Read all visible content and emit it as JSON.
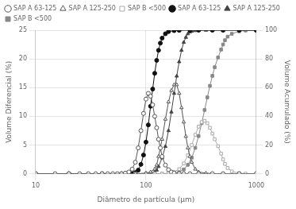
{
  "chart_data": {
    "type": "line",
    "xlabel": "Diâmetro de partícula (μm)",
    "ylabel": "Volume Diferencial (%)",
    "y2label": "Volume Acumulado (%)",
    "log": "x",
    "xlim": [
      10,
      1000
    ],
    "xticks": [
      10,
      100,
      1000
    ],
    "ylim": [
      0,
      25
    ],
    "yticks": [
      0,
      5,
      10,
      15,
      20,
      25
    ],
    "y2lim": [
      0,
      100
    ],
    "y2ticks": [
      0,
      20,
      40,
      60,
      80,
      100
    ],
    "grid": true,
    "legend": "upper left",
    "series": [
      {
        "name": "SAP A 63-125",
        "color": "#555555",
        "marker": "open circle",
        "axis": "y",
        "x": [
          10,
          15,
          20,
          25,
          30,
          35,
          40,
          45,
          50,
          55,
          60,
          65,
          70,
          75,
          80,
          85,
          90,
          95,
          100,
          105,
          110,
          115,
          120,
          125,
          130,
          135,
          140,
          150,
          160,
          170,
          180,
          200,
          220,
          250,
          300,
          400,
          500,
          700,
          1000
        ],
        "values": [
          0,
          0,
          0,
          0,
          0,
          0,
          0,
          0,
          0,
          0,
          0,
          0.1,
          0.3,
          0.8,
          2.0,
          4.5,
          7.5,
          10.5,
          13.0,
          14.0,
          13.5,
          12.0,
          10.0,
          8.0,
          6.0,
          4.5,
          3.0,
          1.5,
          0.7,
          0.3,
          0.1,
          0.02,
          0.01,
          0,
          0,
          0,
          0,
          0,
          0
        ]
      },
      {
        "name": "SAP A 125-250",
        "color": "#555555",
        "marker": "open triangle",
        "axis": "y",
        "x": [
          10,
          20,
          40,
          60,
          80,
          100,
          110,
          120,
          125,
          130,
          140,
          150,
          160,
          170,
          180,
          190,
          200,
          210,
          220,
          230,
          240,
          250,
          260,
          280,
          300,
          350,
          400,
          500,
          700,
          1000
        ],
        "values": [
          0,
          0,
          0,
          0,
          0,
          0.1,
          0.3,
          0.8,
          1.5,
          3.0,
          6.0,
          9.5,
          12.5,
          14.5,
          15.5,
          15.5,
          14.0,
          11.5,
          9.0,
          6.5,
          4.5,
          3.0,
          2.0,
          0.8,
          0.3,
          0.1,
          0.02,
          0,
          0,
          0
        ]
      },
      {
        "name": "SAP B <500",
        "color": "#aaaaaa",
        "marker": "open square",
        "axis": "y",
        "x": [
          10,
          20,
          40,
          60,
          80,
          100,
          120,
          140,
          160,
          180,
          200,
          220,
          240,
          260,
          280,
          300,
          320,
          340,
          360,
          380,
          400,
          420,
          450,
          480,
          500,
          520,
          550,
          600,
          700,
          800,
          1000
        ],
        "values": [
          0,
          0,
          0,
          0,
          0,
          0,
          0,
          0,
          0.1,
          0.3,
          0.8,
          1.8,
          3.2,
          5.0,
          6.8,
          8.2,
          9.0,
          9.2,
          8.8,
          8.0,
          7.0,
          6.0,
          4.8,
          3.5,
          2.5,
          1.7,
          1.0,
          0.4,
          0.1,
          0.02,
          0
        ]
      },
      {
        "name": "SAP A 63-125",
        "color": "#111111",
        "marker": "circle",
        "axis": "y2",
        "x": [
          10,
          20,
          40,
          60,
          70,
          75,
          80,
          85,
          90,
          95,
          100,
          105,
          110,
          115,
          120,
          125,
          130,
          135,
          140,
          150,
          160,
          180,
          200,
          250,
          300,
          400,
          500,
          700,
          1000
        ],
        "values": [
          0,
          0,
          0,
          0,
          0.05,
          0.2,
          0.8,
          2.5,
          6.5,
          13.0,
          22.0,
          34.0,
          47.0,
          59.0,
          70.0,
          79.0,
          86.0,
          91.0,
          94.5,
          97.5,
          99.0,
          99.7,
          99.9,
          100,
          100,
          100,
          100,
          100,
          100
        ]
      },
      {
        "name": "SAP A 125-250",
        "color": "#444444",
        "marker": "triangle",
        "axis": "y2",
        "x": [
          10,
          20,
          40,
          60,
          80,
          100,
          110,
          120,
          125,
          130,
          140,
          150,
          160,
          170,
          180,
          190,
          200,
          210,
          220,
          230,
          240,
          250,
          260,
          280,
          300,
          350,
          400,
          500,
          700,
          1000
        ],
        "values": [
          0,
          0,
          0,
          0,
          0,
          0.1,
          0.4,
          1.2,
          2.5,
          5.0,
          11.0,
          19.0,
          30.0,
          43.0,
          56.0,
          68.0,
          78.0,
          86.0,
          91.5,
          95.0,
          97.5,
          98.8,
          99.3,
          99.7,
          99.9,
          100,
          100,
          100,
          100,
          100
        ]
      },
      {
        "name": "SAP B <500",
        "color": "#888888",
        "marker": "square",
        "axis": "y2",
        "x": [
          10,
          20,
          40,
          60,
          80,
          100,
          120,
          140,
          160,
          180,
          200,
          220,
          240,
          260,
          280,
          300,
          320,
          340,
          360,
          380,
          400,
          420,
          450,
          480,
          500,
          520,
          550,
          600,
          700,
          800,
          1000
        ],
        "values": [
          0,
          0,
          0,
          0,
          0,
          0,
          0,
          0,
          0.1,
          0.4,
          1.2,
          3.0,
          6.2,
          11.2,
          18.0,
          26.2,
          35.2,
          44.4,
          53.2,
          61.2,
          68.2,
          74.2,
          81.0,
          86.5,
          90.0,
          93.0,
          95.5,
          97.5,
          99.2,
          99.8,
          100
        ]
      }
    ]
  }
}
